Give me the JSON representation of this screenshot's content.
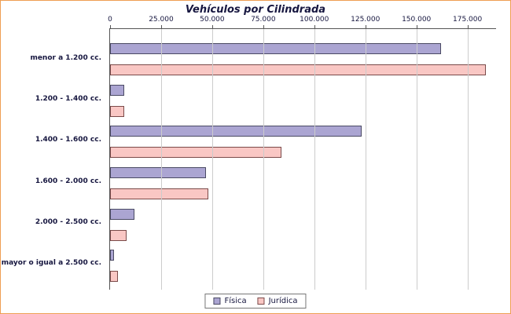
{
  "chart_data": {
    "type": "bar",
    "orientation": "horizontal",
    "title": "Vehículos por Cilindrada",
    "categories": [
      "menor a 1.200 cc.",
      "1.200 - 1.400 cc.",
      "1.400 - 1.600 cc.",
      "1.600 - 2.000 cc.",
      "2.000 - 2.500 cc.",
      "mayor o igual a 2.500 cc."
    ],
    "series": [
      {
        "name": "Física",
        "color": "#aba5d2",
        "border_color": "#4a4a63",
        "values": [
          162000,
          7000,
          123000,
          47000,
          12000,
          2000
        ]
      },
      {
        "name": "Jurídica",
        "color": "#f9c7c4",
        "border_color": "#7a4a49",
        "values": [
          184000,
          7000,
          84000,
          48000,
          8000,
          4000
        ]
      }
    ],
    "x_axis": {
      "tick_labels": [
        "0",
        "25.000",
        "50.000",
        "75.000",
        "100.000",
        "125.000",
        "150.000",
        "175.000"
      ],
      "tick_values": [
        0,
        25000,
        50000,
        75000,
        100000,
        125000,
        150000,
        175000
      ],
      "max": 189000
    },
    "grid": true,
    "legend_position": "bottom"
  },
  "colors": {
    "frame_border": "#ef9e53",
    "gridline": "#cccccc",
    "axis_line": "#555555",
    "text": "#16163f"
  }
}
